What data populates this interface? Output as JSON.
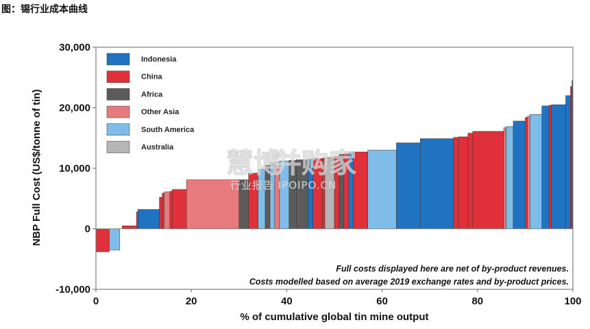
{
  "figure_title": "图：锡行业成本曲线",
  "watermark": {
    "brand": "慧博",
    "cn": "并购家",
    "sub": "行业报告 IPOIPO.CN"
  },
  "chart_data": {
    "type": "bar",
    "subtype": "cost-curve (variable-width bars)",
    "xlabel": "% of cumulative global tin mine output",
    "ylabel": "NBP Full Cost (US$/tonne of tin)",
    "xlim": [
      0,
      100
    ],
    "ylim": [
      -10000,
      30000
    ],
    "xticks": [
      0,
      20,
      40,
      60,
      80,
      100
    ],
    "xtick_labels": [
      "0",
      "20",
      "40",
      "60",
      "80",
      "100"
    ],
    "yticks": [
      -10000,
      0,
      10000,
      20000,
      30000
    ],
    "ytick_labels": [
      "-10,000",
      "0",
      "10,000",
      "20,000",
      "30,000"
    ],
    "grid": false,
    "legend_position": "top-left",
    "legend": [
      {
        "name": "Indonesia",
        "color": "#1f73c1"
      },
      {
        "name": "China",
        "color": "#e0313b"
      },
      {
        "name": "Africa",
        "color": "#5b5b5b"
      },
      {
        "name": "Other Asia",
        "color": "#e77a7c"
      },
      {
        "name": "South America",
        "color": "#7fbce8"
      },
      {
        "name": "Australia",
        "color": "#b6b6b6"
      }
    ],
    "annotations": [
      "Full costs displayed here are net of by-product revenues.",
      "Costs modelled based on average 2019 exchange rates and by-product prices."
    ],
    "segments": [
      {
        "region": "China",
        "x0": 0.0,
        "x1": 2.8,
        "value": -3800
      },
      {
        "region": "South America",
        "x0": 2.8,
        "x1": 5.0,
        "value": -3500
      },
      {
        "region": "China",
        "x0": 5.5,
        "x1": 8.5,
        "value": 500
      },
      {
        "region": "China",
        "x0": 8.5,
        "x1": 8.8,
        "value": 2800
      },
      {
        "region": "Indonesia",
        "x0": 8.8,
        "x1": 13.3,
        "value": 3200
      },
      {
        "region": "China",
        "x0": 13.3,
        "x1": 13.9,
        "value": 5200
      },
      {
        "region": "China",
        "x0": 13.9,
        "x1": 14.3,
        "value": 5900
      },
      {
        "region": "Other Asia",
        "x0": 14.3,
        "x1": 15.5,
        "value": 6100
      },
      {
        "region": "China",
        "x0": 15.5,
        "x1": 16.0,
        "value": 6200
      },
      {
        "region": "China",
        "x0": 16.0,
        "x1": 19.0,
        "value": 6500
      },
      {
        "region": "Other Asia",
        "x0": 19.0,
        "x1": 30.0,
        "value": 8100
      },
      {
        "region": "Africa",
        "x0": 30.0,
        "x1": 32.0,
        "value": 8100
      },
      {
        "region": "China",
        "x0": 32.0,
        "x1": 34.0,
        "value": 9200
      },
      {
        "region": "South America",
        "x0": 34.0,
        "x1": 35.5,
        "value": 9800
      },
      {
        "region": "Africa",
        "x0": 35.5,
        "x1": 36.5,
        "value": 10500
      },
      {
        "region": "South America",
        "x0": 36.5,
        "x1": 37.5,
        "value": 10900
      },
      {
        "region": "Other Asia",
        "x0": 37.5,
        "x1": 38.5,
        "value": 11000
      },
      {
        "region": "South America",
        "x0": 38.5,
        "x1": 40.5,
        "value": 11200
      },
      {
        "region": "Africa",
        "x0": 40.5,
        "x1": 42.0,
        "value": 11300
      },
      {
        "region": "Africa",
        "x0": 42.0,
        "x1": 44.5,
        "value": 11400
      },
      {
        "region": "Indonesia",
        "x0": 44.5,
        "x1": 45.5,
        "value": 11500
      },
      {
        "region": "China",
        "x0": 45.5,
        "x1": 47.5,
        "value": 11600
      },
      {
        "region": "China",
        "x0": 47.5,
        "x1": 48.0,
        "value": 11700
      },
      {
        "region": "Australia",
        "x0": 48.0,
        "x1": 50.0,
        "value": 11800
      },
      {
        "region": "China",
        "x0": 50.0,
        "x1": 51.0,
        "value": 12000
      },
      {
        "region": "Africa",
        "x0": 51.0,
        "x1": 52.0,
        "value": 12300
      },
      {
        "region": "China",
        "x0": 52.0,
        "x1": 53.0,
        "value": 12500
      },
      {
        "region": "Indonesia",
        "x0": 53.0,
        "x1": 54.0,
        "value": 12600
      },
      {
        "region": "China",
        "x0": 54.0,
        "x1": 57.0,
        "value": 12700
      },
      {
        "region": "South America",
        "x0": 57.0,
        "x1": 63.0,
        "value": 13000
      },
      {
        "region": "Indonesia",
        "x0": 63.0,
        "x1": 68.0,
        "value": 14200
      },
      {
        "region": "Indonesia",
        "x0": 68.0,
        "x1": 75.0,
        "value": 14900
      },
      {
        "region": "China",
        "x0": 75.0,
        "x1": 76.0,
        "value": 15100
      },
      {
        "region": "China",
        "x0": 76.0,
        "x1": 78.0,
        "value": 15200
      },
      {
        "region": "China",
        "x0": 78.0,
        "x1": 79.0,
        "value": 15800
      },
      {
        "region": "China",
        "x0": 79.0,
        "x1": 85.5,
        "value": 16100
      },
      {
        "region": "Other Asia",
        "x0": 85.5,
        "x1": 86.0,
        "value": 16700
      },
      {
        "region": "South America",
        "x0": 86.0,
        "x1": 87.5,
        "value": 16900
      },
      {
        "region": "Indonesia",
        "x0": 87.5,
        "x1": 90.0,
        "value": 17800
      },
      {
        "region": "China",
        "x0": 90.0,
        "x1": 90.5,
        "value": 18400
      },
      {
        "region": "Other Asia",
        "x0": 90.5,
        "x1": 91.0,
        "value": 18600
      },
      {
        "region": "South America",
        "x0": 91.0,
        "x1": 93.5,
        "value": 18900
      },
      {
        "region": "Indonesia",
        "x0": 93.5,
        "x1": 95.0,
        "value": 20300
      },
      {
        "region": "China",
        "x0": 95.0,
        "x1": 95.5,
        "value": 20400
      },
      {
        "region": "Indonesia",
        "x0": 95.5,
        "x1": 98.5,
        "value": 20500
      },
      {
        "region": "Indonesia",
        "x0": 98.5,
        "x1": 99.5,
        "value": 22000
      },
      {
        "region": "China",
        "x0": 99.5,
        "x1": 99.8,
        "value": 23500
      },
      {
        "region": "Africa",
        "x0": 99.8,
        "x1": 100.0,
        "value": 24500
      }
    ]
  }
}
